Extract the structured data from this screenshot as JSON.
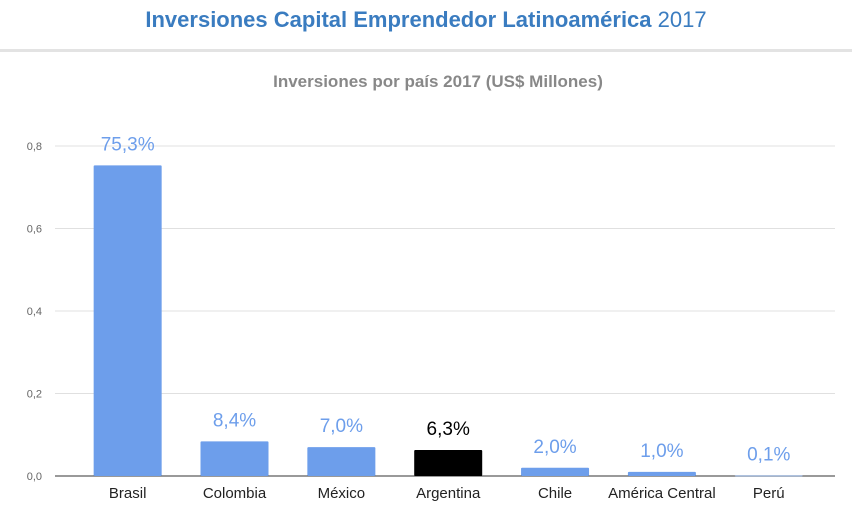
{
  "header": {
    "title_main": "Inversiones Capital Emprendedor Latinoamérica",
    "title_year": "2017"
  },
  "colors": {
    "title": "#3a7cc0",
    "bar": "#6d9eeb",
    "highlight_bar": "#000000",
    "value_label": "#6d9eeb",
    "highlight_label": "#000000",
    "grid": "#e0e0e0",
    "axis_text": "#666666",
    "chart_title": "#888888"
  },
  "chart_data": {
    "type": "bar",
    "title": "Inversiones por país 2017 (US$ Millones)",
    "xlabel": "",
    "ylabel": "",
    "categories": [
      "Brasil",
      "Colombia",
      "México",
      "Argentina",
      "Chile",
      "América Central",
      "Perú"
    ],
    "values": [
      0.753,
      0.084,
      0.07,
      0.063,
      0.02,
      0.01,
      0.001
    ],
    "data_labels": [
      "75,3%",
      "8,4%",
      "7,0%",
      "6,3%",
      "2,0%",
      "1,0%",
      "0,1%"
    ],
    "highlight": "Argentina",
    "ylim": [
      0,
      0.8
    ],
    "yticks": [
      "0,0",
      "0,2",
      "0,4",
      "0,6",
      "0,8"
    ],
    "grid": true,
    "legend": "none"
  }
}
